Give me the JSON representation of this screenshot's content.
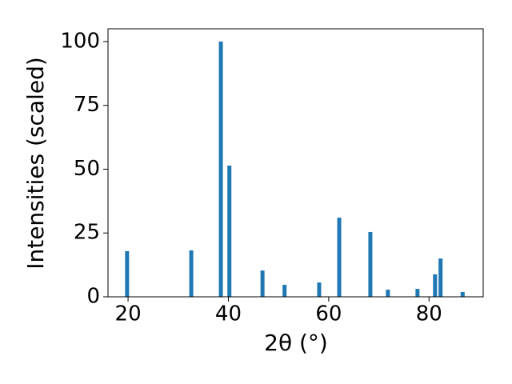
{
  "chart_data": {
    "type": "bar",
    "xlabel": "2θ (°)",
    "ylabel": "Intensities (scaled)",
    "x": [
      19.8,
      32.6,
      38.5,
      40.2,
      46.8,
      51.2,
      58.1,
      62.1,
      68.3,
      71.8,
      77.7,
      81.2,
      82.3,
      86.7
    ],
    "values": [
      17.9,
      18.2,
      100,
      51.4,
      10.3,
      4.7,
      5.6,
      31.0,
      25.4,
      2.8,
      3.1,
      8.8,
      15.0,
      1.9
    ],
    "color": "#1f77b4",
    "xlim": [
      16,
      90.8
    ],
    "xticks": [
      20,
      40,
      60,
      80
    ],
    "ylim": [
      0,
      105
    ],
    "yticks": [
      0,
      25,
      50,
      75,
      100
    ]
  }
}
